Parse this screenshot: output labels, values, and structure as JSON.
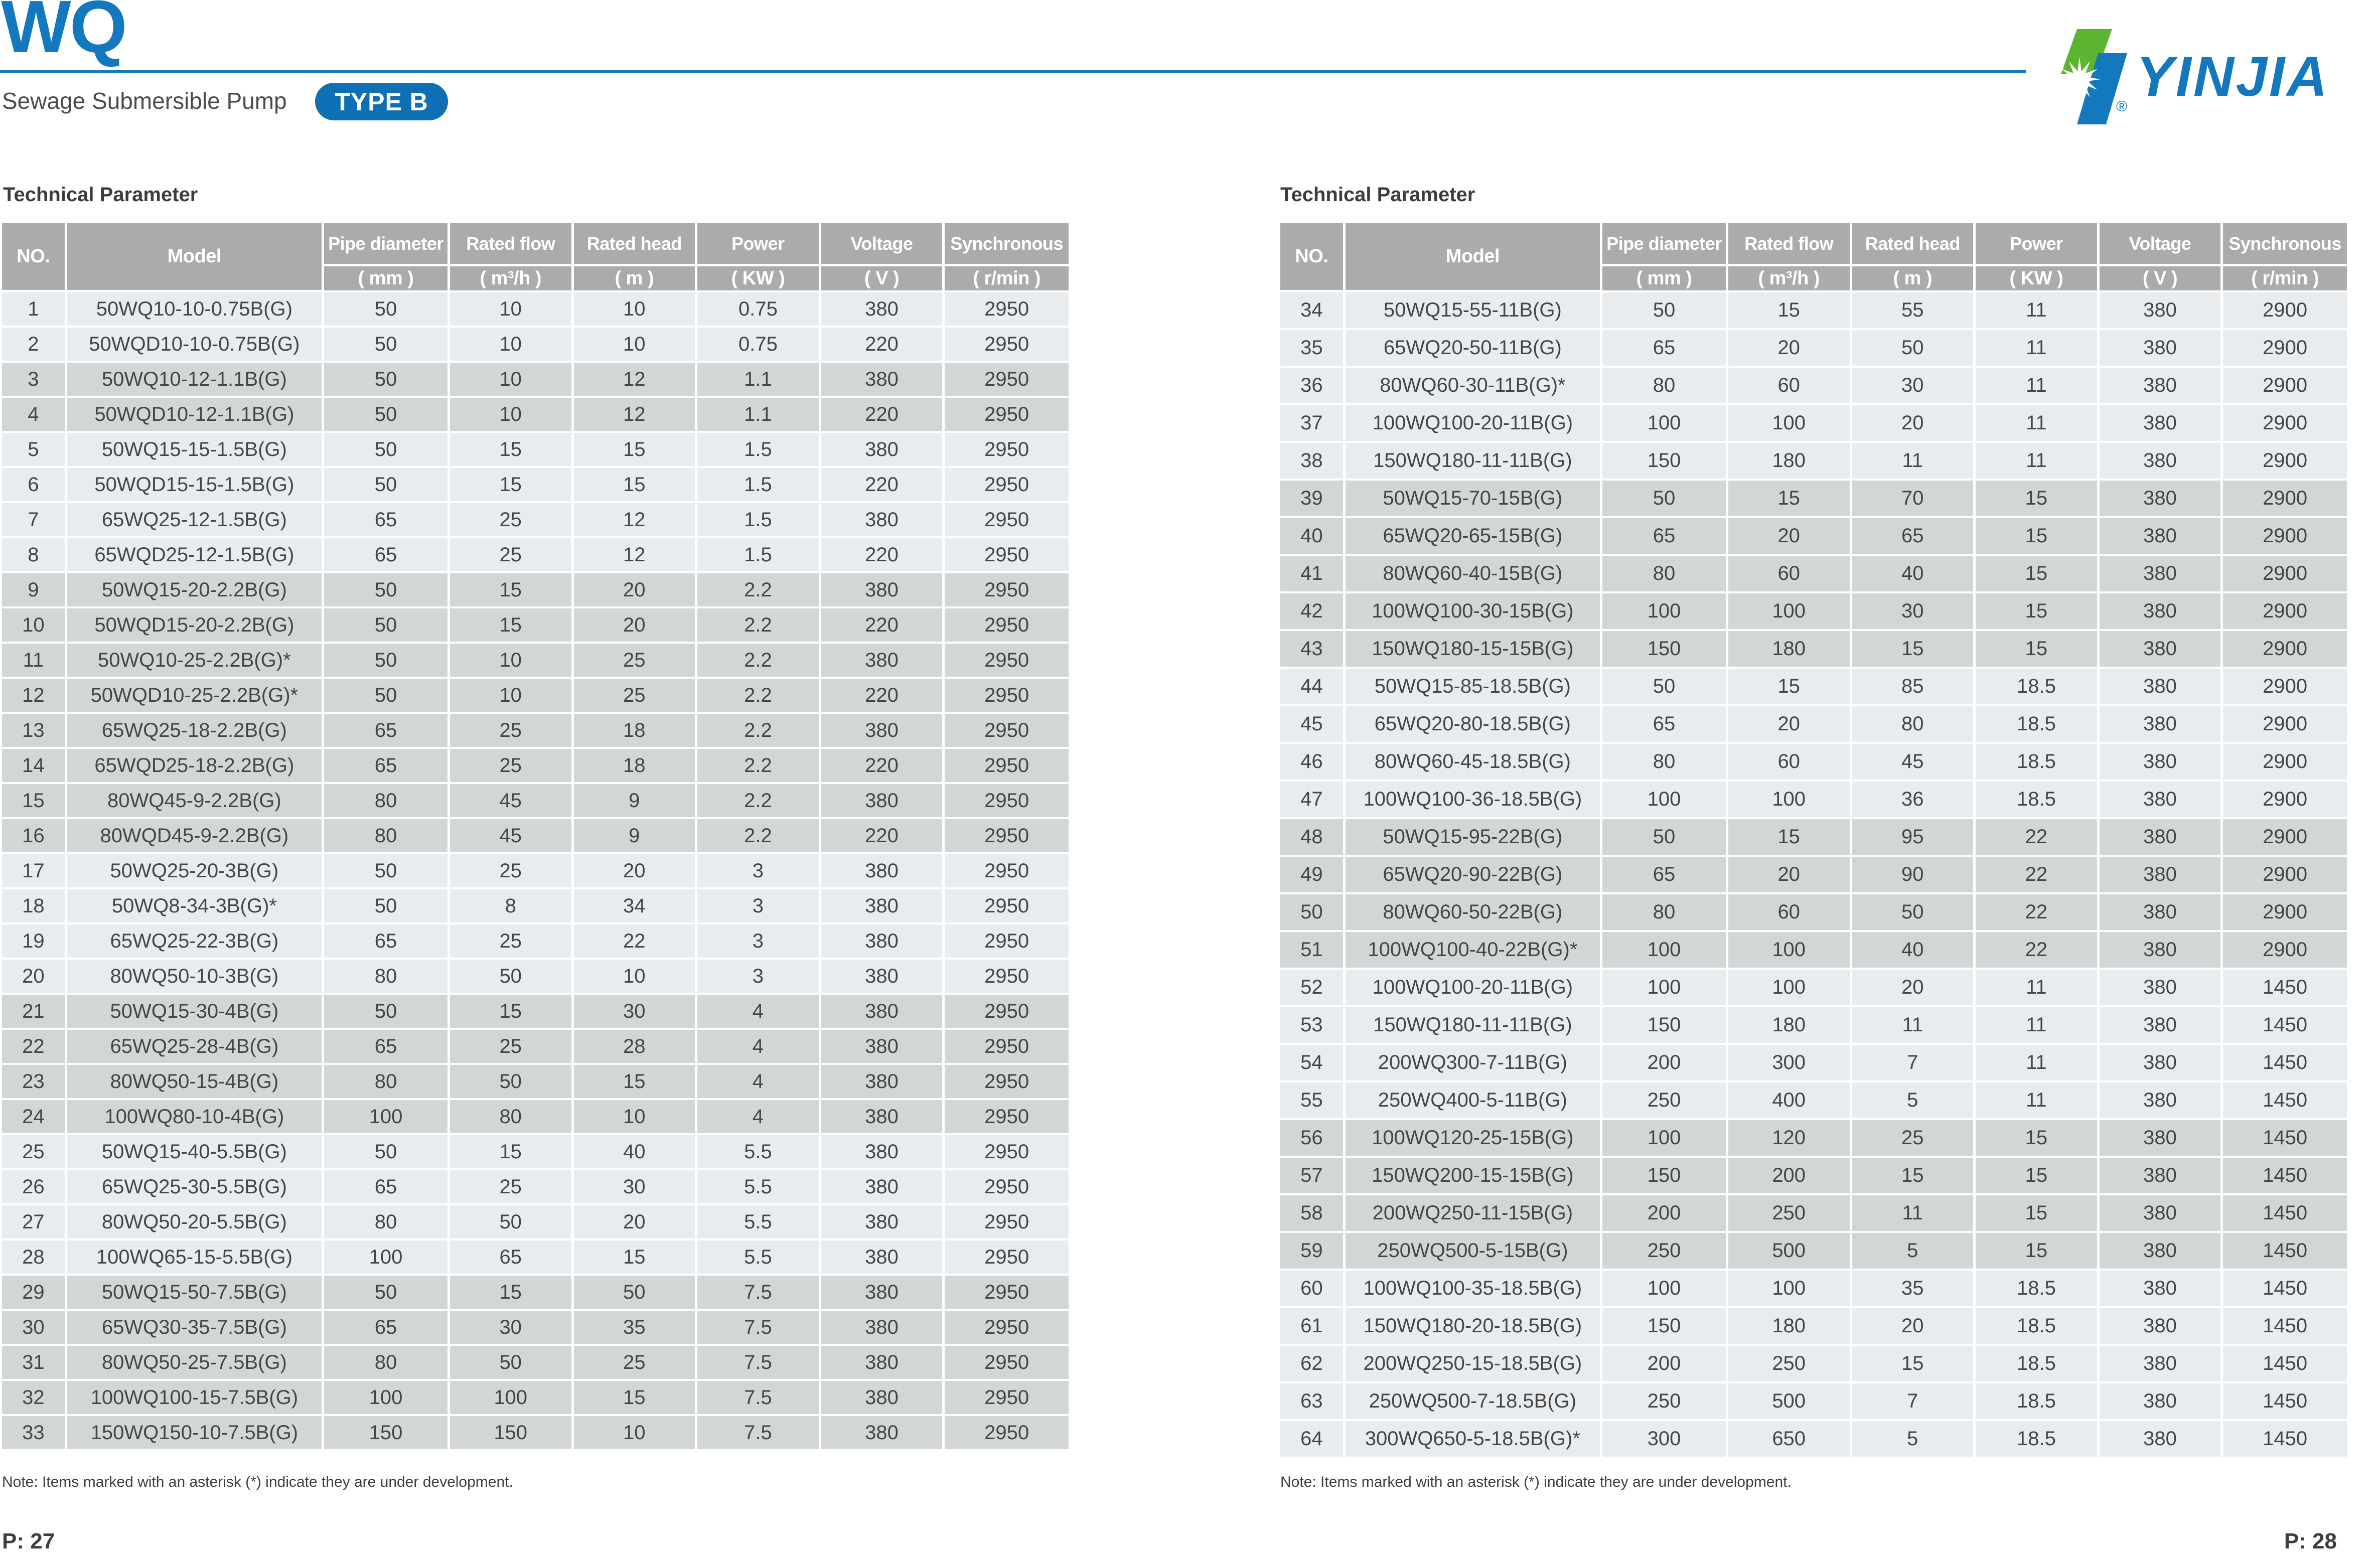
{
  "header": {
    "title": "WQ",
    "subtitle": "Sewage Submersible Pump",
    "type_badge": "TYPE B",
    "brand_text": "YINJIA",
    "registered_mark": "®"
  },
  "columns": {
    "no": "NO.",
    "model": "Model",
    "pipe_diameter": {
      "label": "Pipe diameter",
      "unit": "( mm )"
    },
    "rated_flow": {
      "label": "Rated flow",
      "unit": "( m³/h )"
    },
    "rated_head": {
      "label": "Rated head",
      "unit": "( m )"
    },
    "power": {
      "label": "Power",
      "unit": "( KW )"
    },
    "voltage": {
      "label": "Voltage",
      "unit": "( V )"
    },
    "synchronous": {
      "label": "Synchronous",
      "unit": "( r/min )"
    }
  },
  "left_section": {
    "heading": "Technical Parameter",
    "note": "Note: Items marked with an asterisk (*) indicate they are under development.",
    "page_label": "P: 27",
    "rows": [
      [
        "1",
        "50WQ10-10-0.75B(G)",
        "50",
        "10",
        "10",
        "0.75",
        "380",
        "2950",
        "light"
      ],
      [
        "2",
        "50WQD10-10-0.75B(G)",
        "50",
        "10",
        "10",
        "0.75",
        "220",
        "2950",
        "light"
      ],
      [
        "3",
        "50WQ10-12-1.1B(G)",
        "50",
        "10",
        "12",
        "1.1",
        "380",
        "2950",
        "dark"
      ],
      [
        "4",
        "50WQD10-12-1.1B(G)",
        "50",
        "10",
        "12",
        "1.1",
        "220",
        "2950",
        "dark"
      ],
      [
        "5",
        "50WQ15-15-1.5B(G)",
        "50",
        "15",
        "15",
        "1.5",
        "380",
        "2950",
        "light"
      ],
      [
        "6",
        "50WQD15-15-1.5B(G)",
        "50",
        "15",
        "15",
        "1.5",
        "220",
        "2950",
        "light"
      ],
      [
        "7",
        "65WQ25-12-1.5B(G)",
        "65",
        "25",
        "12",
        "1.5",
        "380",
        "2950",
        "light"
      ],
      [
        "8",
        "65WQD25-12-1.5B(G)",
        "65",
        "25",
        "12",
        "1.5",
        "220",
        "2950",
        "light"
      ],
      [
        "9",
        "50WQ15-20-2.2B(G)",
        "50",
        "15",
        "20",
        "2.2",
        "380",
        "2950",
        "dark"
      ],
      [
        "10",
        "50WQD15-20-2.2B(G)",
        "50",
        "15",
        "20",
        "2.2",
        "220",
        "2950",
        "dark"
      ],
      [
        "11",
        "50WQ10-25-2.2B(G)*",
        "50",
        "10",
        "25",
        "2.2",
        "380",
        "2950",
        "dark"
      ],
      [
        "12",
        "50WQD10-25-2.2B(G)*",
        "50",
        "10",
        "25",
        "2.2",
        "220",
        "2950",
        "dark"
      ],
      [
        "13",
        "65WQ25-18-2.2B(G)",
        "65",
        "25",
        "18",
        "2.2",
        "380",
        "2950",
        "dark"
      ],
      [
        "14",
        "65WQD25-18-2.2B(G)",
        "65",
        "25",
        "18",
        "2.2",
        "220",
        "2950",
        "dark"
      ],
      [
        "15",
        "80WQ45-9-2.2B(G)",
        "80",
        "45",
        "9",
        "2.2",
        "380",
        "2950",
        "dark"
      ],
      [
        "16",
        "80WQD45-9-2.2B(G)",
        "80",
        "45",
        "9",
        "2.2",
        "220",
        "2950",
        "dark"
      ],
      [
        "17",
        "50WQ25-20-3B(G)",
        "50",
        "25",
        "20",
        "3",
        "380",
        "2950",
        "light"
      ],
      [
        "18",
        "50WQ8-34-3B(G)*",
        "50",
        "8",
        "34",
        "3",
        "380",
        "2950",
        "light"
      ],
      [
        "19",
        "65WQ25-22-3B(G)",
        "65",
        "25",
        "22",
        "3",
        "380",
        "2950",
        "light"
      ],
      [
        "20",
        "80WQ50-10-3B(G)",
        "80",
        "50",
        "10",
        "3",
        "380",
        "2950",
        "light"
      ],
      [
        "21",
        "50WQ15-30-4B(G)",
        "50",
        "15",
        "30",
        "4",
        "380",
        "2950",
        "dark"
      ],
      [
        "22",
        "65WQ25-28-4B(G)",
        "65",
        "25",
        "28",
        "4",
        "380",
        "2950",
        "dark"
      ],
      [
        "23",
        "80WQ50-15-4B(G)",
        "80",
        "50",
        "15",
        "4",
        "380",
        "2950",
        "dark"
      ],
      [
        "24",
        "100WQ80-10-4B(G)",
        "100",
        "80",
        "10",
        "4",
        "380",
        "2950",
        "dark"
      ],
      [
        "25",
        "50WQ15-40-5.5B(G)",
        "50",
        "15",
        "40",
        "5.5",
        "380",
        "2950",
        "light"
      ],
      [
        "26",
        "65WQ25-30-5.5B(G)",
        "65",
        "25",
        "30",
        "5.5",
        "380",
        "2950",
        "light"
      ],
      [
        "27",
        "80WQ50-20-5.5B(G)",
        "80",
        "50",
        "20",
        "5.5",
        "380",
        "2950",
        "light"
      ],
      [
        "28",
        "100WQ65-15-5.5B(G)",
        "100",
        "65",
        "15",
        "5.5",
        "380",
        "2950",
        "light"
      ],
      [
        "29",
        "50WQ15-50-7.5B(G)",
        "50",
        "15",
        "50",
        "7.5",
        "380",
        "2950",
        "dark"
      ],
      [
        "30",
        "65WQ30-35-7.5B(G)",
        "65",
        "30",
        "35",
        "7.5",
        "380",
        "2950",
        "dark"
      ],
      [
        "31",
        "80WQ50-25-7.5B(G)",
        "80",
        "50",
        "25",
        "7.5",
        "380",
        "2950",
        "dark"
      ],
      [
        "32",
        "100WQ100-15-7.5B(G)",
        "100",
        "100",
        "15",
        "7.5",
        "380",
        "2950",
        "dark"
      ],
      [
        "33",
        "150WQ150-10-7.5B(G)",
        "150",
        "150",
        "10",
        "7.5",
        "380",
        "2950",
        "dark"
      ]
    ]
  },
  "right_section": {
    "heading": "Technical Parameter",
    "note": "Note: Items marked with an asterisk (*) indicate they are under development.",
    "page_label": "P: 28",
    "rows": [
      [
        "34",
        "50WQ15-55-11B(G)",
        "50",
        "15",
        "55",
        "11",
        "380",
        "2900",
        "light"
      ],
      [
        "35",
        "65WQ20-50-11B(G)",
        "65",
        "20",
        "50",
        "11",
        "380",
        "2900",
        "light"
      ],
      [
        "36",
        "80WQ60-30-11B(G)*",
        "80",
        "60",
        "30",
        "11",
        "380",
        "2900",
        "light"
      ],
      [
        "37",
        "100WQ100-20-11B(G)",
        "100",
        "100",
        "20",
        "11",
        "380",
        "2900",
        "light"
      ],
      [
        "38",
        "150WQ180-11-11B(G)",
        "150",
        "180",
        "11",
        "11",
        "380",
        "2900",
        "light"
      ],
      [
        "39",
        "50WQ15-70-15B(G)",
        "50",
        "15",
        "70",
        "15",
        "380",
        "2900",
        "dark"
      ],
      [
        "40",
        "65WQ20-65-15B(G)",
        "65",
        "20",
        "65",
        "15",
        "380",
        "2900",
        "dark"
      ],
      [
        "41",
        "80WQ60-40-15B(G)",
        "80",
        "60",
        "40",
        "15",
        "380",
        "2900",
        "dark"
      ],
      [
        "42",
        "100WQ100-30-15B(G)",
        "100",
        "100",
        "30",
        "15",
        "380",
        "2900",
        "dark"
      ],
      [
        "43",
        "150WQ180-15-15B(G)",
        "150",
        "180",
        "15",
        "15",
        "380",
        "2900",
        "dark"
      ],
      [
        "44",
        "50WQ15-85-18.5B(G)",
        "50",
        "15",
        "85",
        "18.5",
        "380",
        "2900",
        "light"
      ],
      [
        "45",
        "65WQ20-80-18.5B(G)",
        "65",
        "20",
        "80",
        "18.5",
        "380",
        "2900",
        "light"
      ],
      [
        "46",
        "80WQ60-45-18.5B(G)",
        "80",
        "60",
        "45",
        "18.5",
        "380",
        "2900",
        "light"
      ],
      [
        "47",
        "100WQ100-36-18.5B(G)",
        "100",
        "100",
        "36",
        "18.5",
        "380",
        "2900",
        "light"
      ],
      [
        "48",
        "50WQ15-95-22B(G)",
        "50",
        "15",
        "95",
        "22",
        "380",
        "2900",
        "dark"
      ],
      [
        "49",
        "65WQ20-90-22B(G)",
        "65",
        "20",
        "90",
        "22",
        "380",
        "2900",
        "dark"
      ],
      [
        "50",
        "80WQ60-50-22B(G)",
        "80",
        "60",
        "50",
        "22",
        "380",
        "2900",
        "dark"
      ],
      [
        "51",
        "100WQ100-40-22B(G)*",
        "100",
        "100",
        "40",
        "22",
        "380",
        "2900",
        "dark"
      ],
      [
        "52",
        "100WQ100-20-11B(G)",
        "100",
        "100",
        "20",
        "11",
        "380",
        "1450",
        "light"
      ],
      [
        "53",
        "150WQ180-11-11B(G)",
        "150",
        "180",
        "11",
        "11",
        "380",
        "1450",
        "light"
      ],
      [
        "54",
        "200WQ300-7-11B(G)",
        "200",
        "300",
        "7",
        "11",
        "380",
        "1450",
        "light"
      ],
      [
        "55",
        "250WQ400-5-11B(G)",
        "250",
        "400",
        "5",
        "11",
        "380",
        "1450",
        "light"
      ],
      [
        "56",
        "100WQ120-25-15B(G)",
        "100",
        "120",
        "25",
        "15",
        "380",
        "1450",
        "dark"
      ],
      [
        "57",
        "150WQ200-15-15B(G)",
        "150",
        "200",
        "15",
        "15",
        "380",
        "1450",
        "dark"
      ],
      [
        "58",
        "200WQ250-11-15B(G)",
        "200",
        "250",
        "11",
        "15",
        "380",
        "1450",
        "dark"
      ],
      [
        "59",
        "250WQ500-5-15B(G)",
        "250",
        "500",
        "5",
        "15",
        "380",
        "1450",
        "dark"
      ],
      [
        "60",
        "100WQ100-35-18.5B(G)",
        "100",
        "100",
        "35",
        "18.5",
        "380",
        "1450",
        "light"
      ],
      [
        "61",
        "150WQ180-20-18.5B(G)",
        "150",
        "180",
        "20",
        "18.5",
        "380",
        "1450",
        "light"
      ],
      [
        "62",
        "200WQ250-15-18.5B(G)",
        "200",
        "250",
        "15",
        "18.5",
        "380",
        "1450",
        "light"
      ],
      [
        "63",
        "250WQ500-7-18.5B(G)",
        "250",
        "500",
        "7",
        "18.5",
        "380",
        "1450",
        "light"
      ],
      [
        "64",
        "300WQ650-5-18.5B(G)*",
        "300",
        "650",
        "5",
        "18.5",
        "380",
        "1450",
        "light"
      ]
    ]
  },
  "colors": {
    "brand_blue": "#1478be",
    "badge_blue": "#0f6fb5",
    "logo_green": "#5cb531",
    "header_gray": "#ababab",
    "row_light": "#e9ecef",
    "row_dark": "#d2d6d7",
    "text_dark": "#454545"
  }
}
